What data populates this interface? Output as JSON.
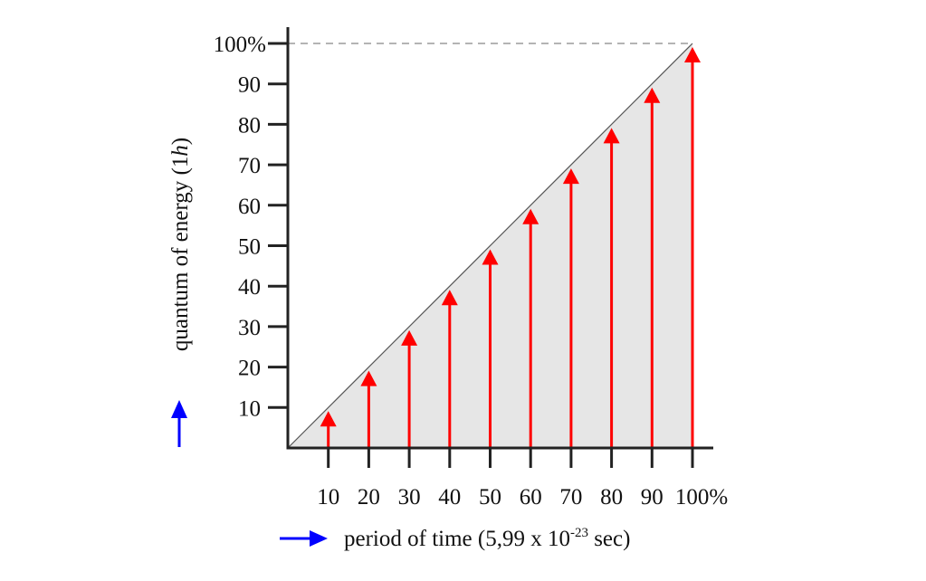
{
  "chart_data": {
    "type": "bar",
    "title": "",
    "xlabel": "period of time (5,99 x 10",
    "xlabel_exponent": "-23",
    "xlabel_suffix": " sec)",
    "ylabel_prefix": "quantum of energy (1",
    "ylabel_italic": "h",
    "ylabel_suffix": ")",
    "x_tick_labels": [
      "10",
      "20",
      "30",
      "40",
      "50",
      "60",
      "70",
      "80",
      "90",
      "100%"
    ],
    "y_tick_labels": [
      "10",
      "20",
      "30",
      "40",
      "50",
      "60",
      "70",
      "80",
      "90",
      "100%"
    ],
    "x": [
      10,
      20,
      30,
      40,
      50,
      60,
      70,
      80,
      90,
      100
    ],
    "values": [
      10,
      20,
      30,
      40,
      50,
      60,
      70,
      80,
      90,
      100
    ],
    "xlim": [
      0,
      100
    ],
    "ylim": [
      0,
      100
    ],
    "reference_line": "diagonal from 0% to 100%, with dashed line at 100%",
    "colors": {
      "arrows": "#ff0000",
      "axis_arrows": "#0000ff",
      "fill": "#e6e6e6",
      "axis": "#222222"
    }
  }
}
